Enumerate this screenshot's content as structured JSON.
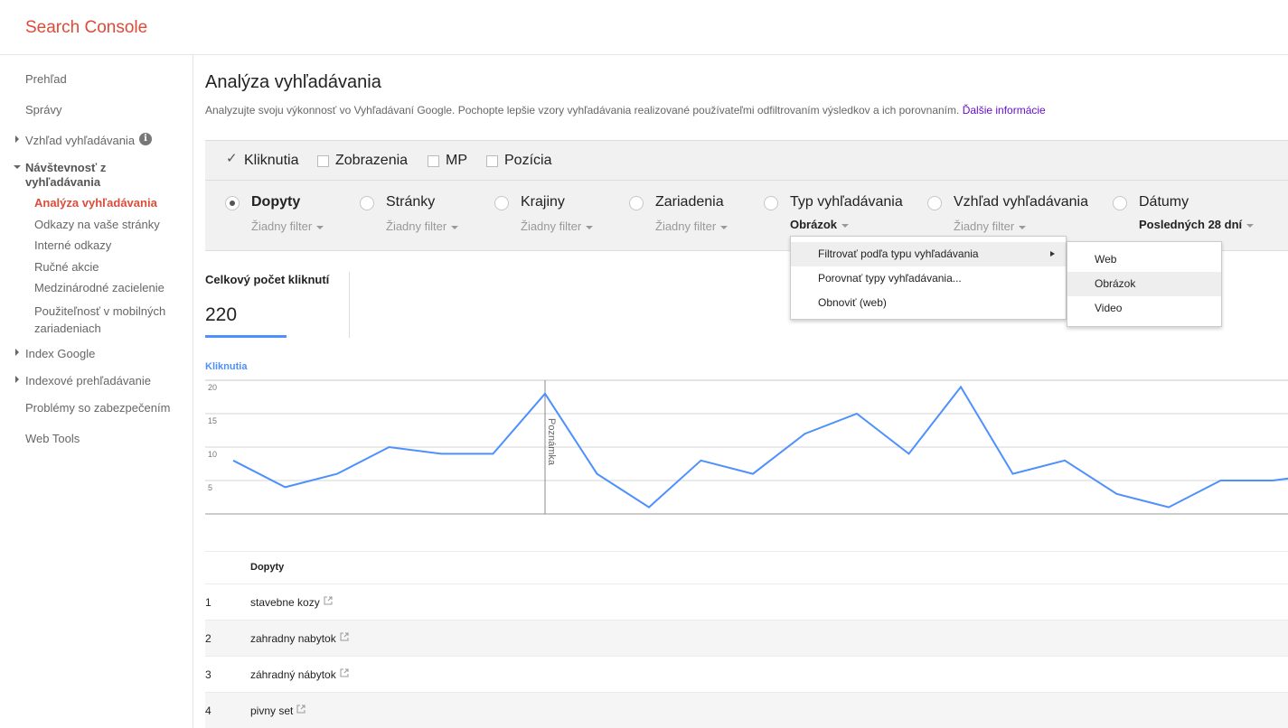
{
  "app": {
    "title": "Search Console"
  },
  "sidebar": {
    "items": [
      {
        "label": "Prehľad"
      },
      {
        "label": "Správy"
      },
      {
        "label": "Vzhľad vyhľadávania"
      },
      {
        "label": "Návštevnosť z vyhľadávania"
      },
      {
        "label": "Analýza vyhľadávania"
      },
      {
        "label": "Odkazy na vaše stránky"
      },
      {
        "label": "Interné odkazy"
      },
      {
        "label": "Ručné akcie"
      },
      {
        "label": "Medzinárodné zacielenie"
      },
      {
        "label": "Použiteľnosť v mobilných zariadeniach"
      },
      {
        "label": "Index Google"
      },
      {
        "label": "Indexové prehľadávanie"
      },
      {
        "label": "Problémy so zabezpečením"
      },
      {
        "label": "Web Tools"
      }
    ],
    "info_icon": "i"
  },
  "page": {
    "title": "Analýza vyhľadávania",
    "description": "Analyzujte svoju výkonnosť vo Vyhľadávaní Google. Pochopte lepšie vzory vyhľadávania realizované používateľmi odfiltrovaním výsledkov a ich porovnaním.",
    "more_link": "Ďalšie informácie"
  },
  "metrics": [
    {
      "label": "Kliknutia",
      "checked": true
    },
    {
      "label": "Zobrazenia",
      "checked": false
    },
    {
      "label": "MP",
      "checked": false
    },
    {
      "label": "Pozícia",
      "checked": false
    }
  ],
  "filters": [
    {
      "label": "Dopyty",
      "value": "Žiadny filter",
      "selected": true
    },
    {
      "label": "Stránky",
      "value": "Žiadny filter",
      "selected": false
    },
    {
      "label": "Krajiny",
      "value": "Žiadny filter",
      "selected": false
    },
    {
      "label": "Zariadenia",
      "value": "Žiadny filter",
      "selected": false
    },
    {
      "label": "Typ vyhľadávania",
      "value": "Obrázok",
      "selected": false
    },
    {
      "label": "Vzhľad vyhľadávania",
      "value": "Žiadny filter",
      "selected": false
    },
    {
      "label": "Dátumy",
      "value": "Posledných 28 dní",
      "selected": false
    }
  ],
  "menu": {
    "items": [
      "Filtrovať podľa typu vyhľadávania",
      "Porovnať typy vyhľadávania...",
      "Obnoviť (web)"
    ],
    "submenu": [
      "Web",
      "Obrázok",
      "Video"
    ],
    "submenu_highlighted": "Obrázok"
  },
  "summary": {
    "label": "Celkový počet kliknutí",
    "value": "220"
  },
  "chart_data": {
    "type": "line",
    "series": [
      {
        "name": "Kliknutia",
        "values": [
          8,
          4,
          6,
          10,
          9,
          9,
          18,
          6,
          1,
          8,
          6,
          12,
          15,
          9,
          19,
          6,
          8,
          3,
          1,
          5,
          5,
          6
        ]
      }
    ],
    "yticks": [
      "20",
      "15",
      "10",
      "5"
    ],
    "ylim": [
      0,
      20
    ],
    "grid": true,
    "annotation": {
      "label": "Poznámka",
      "index": 6
    },
    "color": "#4d90fe"
  },
  "table": {
    "header": "Dopyty",
    "rows": [
      {
        "n": "1",
        "q": "stavebne kozy"
      },
      {
        "n": "2",
        "q": "zahradny nabytok"
      },
      {
        "n": "3",
        "q": "záhradný nábytok"
      },
      {
        "n": "4",
        "q": "pivny set"
      }
    ]
  }
}
